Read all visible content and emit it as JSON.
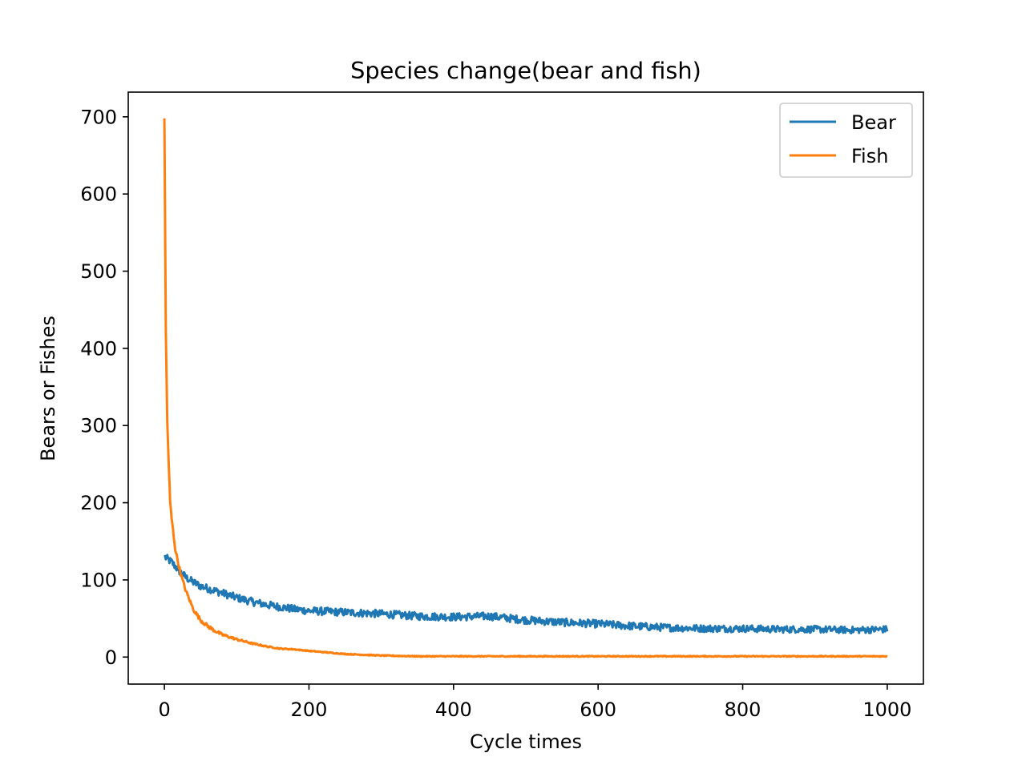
{
  "chart_data": {
    "type": "line",
    "title": "Species change(bear and fish)",
    "xlabel": "Cycle times",
    "ylabel": "Bears or Fishes",
    "xlim": [
      -50,
      1050
    ],
    "ylim": [
      -35,
      732
    ],
    "xticks": [
      0,
      200,
      400,
      600,
      800,
      1000
    ],
    "yticks": [
      0,
      100,
      200,
      300,
      400,
      500,
      600,
      700
    ],
    "grid": false,
    "legend_position": "top-right",
    "series": [
      {
        "name": "Bear",
        "color": "#1f77b4",
        "noise": 5,
        "x": [
          0,
          10,
          20,
          30,
          40,
          50,
          60,
          70,
          80,
          90,
          100,
          120,
          140,
          160,
          180,
          200,
          250,
          300,
          350,
          400,
          450,
          500,
          550,
          600,
          650,
          700,
          750,
          800,
          850,
          900,
          950,
          1000
        ],
        "values": [
          130,
          123,
          112,
          103,
          97,
          92,
          89,
          86,
          83,
          80,
          77,
          72,
          68,
          65,
          62,
          60,
          58,
          56,
          53,
          52,
          53,
          48,
          45,
          43,
          40,
          38,
          37,
          37,
          36,
          36,
          35,
          36
        ]
      },
      {
        "name": "Fish",
        "color": "#ff7f0e",
        "noise": 2.5,
        "x": [
          0,
          2,
          4,
          6,
          8,
          10,
          15,
          20,
          25,
          30,
          40,
          50,
          60,
          70,
          80,
          100,
          120,
          140,
          160,
          180,
          200,
          250,
          300,
          350,
          400,
          500,
          600,
          700,
          800,
          900,
          1000
        ],
        "values": [
          698,
          420,
          305,
          250,
          200,
          180,
          140,
          118,
          100,
          85,
          62,
          48,
          40,
          34,
          29,
          23,
          18,
          14,
          11,
          10,
          8,
          4,
          2,
          1,
          1,
          1,
          1,
          1,
          1,
          1,
          1
        ]
      }
    ]
  }
}
